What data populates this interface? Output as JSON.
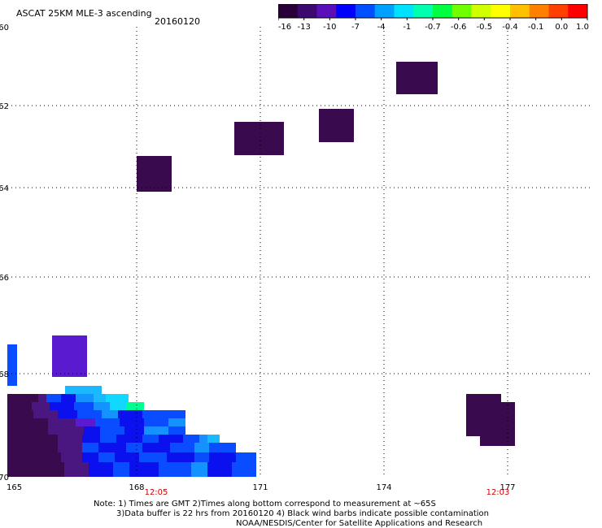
{
  "header": {
    "title": "ASCAT 25KM MLE-3 ascending",
    "date": "20160120"
  },
  "colorbar": {
    "colors": [
      "#2a0038",
      "#3c0a6e",
      "#5a10b8",
      "#0000ff",
      "#0050ff",
      "#00a0ff",
      "#00e0ff",
      "#00ffb0",
      "#00ff40",
      "#70ff00",
      "#d0ff00",
      "#ffff00",
      "#ffc000",
      "#ff8000",
      "#ff4000",
      "#ff0000"
    ],
    "ticks": [
      "-16",
      "-13",
      "-10",
      "-7",
      "-4",
      "-1",
      "-0.7",
      "-0.6",
      "-0.5",
      "-0.4",
      "-0.1",
      "0.0",
      "1.0"
    ]
  },
  "axes": {
    "lat_labels": [
      "-60",
      "-62",
      "-64",
      "-66",
      "-68",
      "-70"
    ],
    "lon_labels": [
      "165",
      "168",
      "171",
      "174",
      "177"
    ],
    "time_labels": [
      "12:05",
      "12:03"
    ],
    "time_color": "#cc0000"
  },
  "notes": {
    "line1": "Note: 1) Times are GMT 2)Times along bottom correspond to measurement at ~65S",
    "line2": "3)Data buffer is 22 hrs from 20160120 4) Black wind barbs indicate possible contamination",
    "line3": "NOAA/NESDIS/Center for Satellite Applications and Research"
  }
}
